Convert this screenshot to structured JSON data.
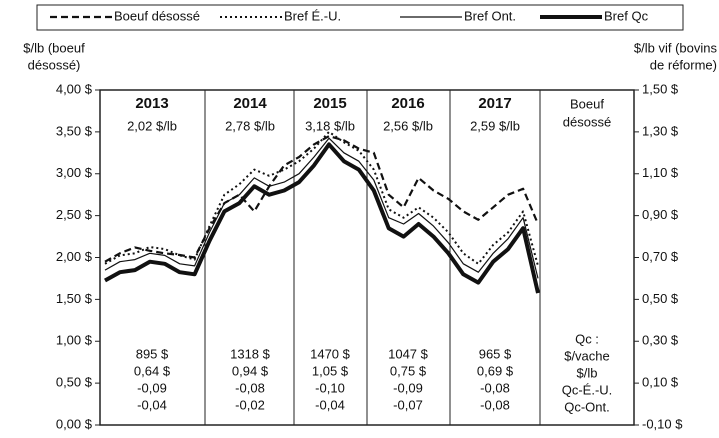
{
  "chart_data": {
    "type": "line",
    "ylabel": [
      "$/lb (boeuf",
      "désossé)"
    ],
    "y2label": [
      "$/lb vif (bovins",
      "de réforme)"
    ],
    "ylim": [
      0,
      4
    ],
    "yticks": [
      {
        "value": 0,
        "label": "0,00 $"
      },
      {
        "value": 0.5,
        "label": "0,50 $"
      },
      {
        "value": 1,
        "label": "1,00 $"
      },
      {
        "value": 1.5,
        "label": "1,50 $"
      },
      {
        "value": 2,
        "label": "2,00 $"
      },
      {
        "value": 2.5,
        "label": "2,50 $"
      },
      {
        "value": 3,
        "label": "3,00 $"
      },
      {
        "value": 3.5,
        "label": "3,50 $"
      },
      {
        "value": 4,
        "label": "4,00 $"
      }
    ],
    "y2lim": [
      -0.1,
      1.5
    ],
    "y2ticks": [
      {
        "value": -0.1,
        "label": "-0,10 $"
      },
      {
        "value": 0.1,
        "label": "0,10 $"
      },
      {
        "value": 0.3,
        "label": "0,30 $"
      },
      {
        "value": 0.5,
        "label": "0,50 $"
      },
      {
        "value": 0.7,
        "label": "0,70 $"
      },
      {
        "value": 0.9,
        "label": "0,90 $"
      },
      {
        "value": 1.1,
        "label": "1,10 $"
      },
      {
        "value": 1.3,
        "label": "1,30 $"
      },
      {
        "value": 1.5,
        "label": "1,50 $"
      }
    ],
    "series": [
      {
        "name": "Boeuf désossé",
        "color": "#111111",
        "dash": "dashed",
        "width": 2.2,
        "axis": "y",
        "values": [
          1.95,
          2.05,
          2.12,
          2.08,
          2.05,
          2.03,
          2.0,
          2.35,
          2.65,
          2.75,
          2.55,
          2.85,
          3.1,
          3.2,
          3.35,
          3.45,
          3.4,
          3.3,
          3.25,
          2.75,
          2.6,
          2.95,
          2.8,
          2.7,
          2.55,
          2.45,
          2.6,
          2.75,
          2.82,
          2.4
        ]
      },
      {
        "name": "Bref É.-U.",
        "color": "#111111",
        "dash": "dotted",
        "width": 2,
        "axis": "y2",
        "values": [
          0.67,
          0.71,
          0.72,
          0.75,
          0.74,
          0.71,
          0.69,
          0.85,
          1.0,
          1.05,
          1.12,
          1.09,
          1.12,
          1.16,
          1.22,
          1.3,
          1.25,
          1.21,
          1.12,
          0.93,
          0.89,
          0.94,
          0.89,
          0.82,
          0.72,
          0.67,
          0.76,
          0.82,
          0.92,
          0.66
        ]
      },
      {
        "name": "Bref Ont.",
        "color": "#111111",
        "dash": "solid",
        "width": 1.2,
        "axis": "y2",
        "values": [
          0.64,
          0.68,
          0.69,
          0.72,
          0.71,
          0.67,
          0.66,
          0.82,
          0.96,
          1.0,
          1.08,
          1.04,
          1.06,
          1.1,
          1.18,
          1.27,
          1.2,
          1.16,
          1.07,
          0.89,
          0.86,
          0.91,
          0.85,
          0.77,
          0.67,
          0.63,
          0.72,
          0.79,
          0.89,
          0.6
        ]
      },
      {
        "name": "Bref Qc",
        "color": "#111111",
        "dash": "solid",
        "width": 4,
        "axis": "y2",
        "values": [
          0.59,
          0.63,
          0.64,
          0.68,
          0.67,
          0.63,
          0.62,
          0.78,
          0.92,
          0.96,
          1.04,
          1.0,
          1.02,
          1.06,
          1.14,
          1.24,
          1.16,
          1.12,
          1.02,
          0.84,
          0.8,
          0.86,
          0.8,
          0.72,
          0.62,
          0.58,
          0.68,
          0.74,
          0.84,
          0.53
        ]
      }
    ]
  },
  "table": {
    "header": [
      "Boeuf",
      "désossé"
    ],
    "row_labels": [
      "Qc :",
      "$/vache",
      "$/lb",
      "Qc-É.-U.",
      "Qc-Ont."
    ],
    "columns": [
      {
        "year": "2013",
        "avg": "2,02 $/lb",
        "cells": [
          "895 $",
          "0,64 $",
          "-0,09",
          "-0,04"
        ]
      },
      {
        "year": "2014",
        "avg": "2,78 $/lb",
        "cells": [
          "1318 $",
          "0,94 $",
          "-0,08",
          "-0,02"
        ]
      },
      {
        "year": "2015",
        "avg": "3,18 $/lb",
        "cells": [
          "1470 $",
          "1,05 $",
          "-0,10",
          "-0,04"
        ]
      },
      {
        "year": "2016",
        "avg": "2,56 $/lb",
        "cells": [
          "1047 $",
          "0,75 $",
          "-0,09",
          "-0,07"
        ]
      },
      {
        "year": "2017",
        "avg": "2,59 $/lb",
        "cells": [
          "965 $",
          "0,69 $",
          "-0,08",
          "-0,08"
        ]
      }
    ]
  }
}
